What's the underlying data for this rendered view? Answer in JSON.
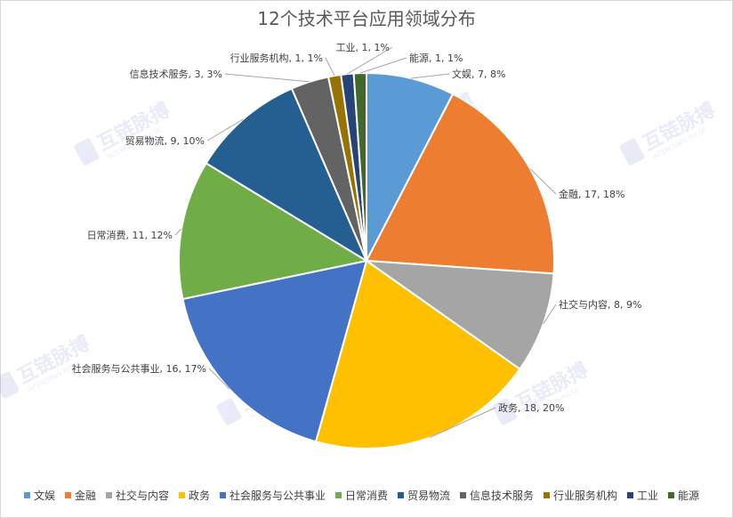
{
  "chart_data": {
    "type": "pie",
    "title": "12个技术平台应用领域分布",
    "slices": [
      {
        "name": "文娱",
        "value": 7,
        "percent": "8%",
        "color": "#5B9BD5"
      },
      {
        "name": "金融",
        "value": 17,
        "percent": "18%",
        "color": "#ED7D31"
      },
      {
        "name": "社交与内容",
        "value": 8,
        "percent": "9%",
        "color": "#A5A5A5"
      },
      {
        "name": "政务",
        "value": 18,
        "percent": "20%",
        "color": "#FFC000"
      },
      {
        "name": "社会服务与公共事业",
        "value": 16,
        "percent": "17%",
        "color": "#4472C4"
      },
      {
        "name": "日常消费",
        "value": 11,
        "percent": "12%",
        "color": "#70AD47"
      },
      {
        "name": "贸易物流",
        "value": 9,
        "percent": "10%",
        "color": "#255E91"
      },
      {
        "name": "信息技术服务",
        "value": 3,
        "percent": "3%",
        "color": "#636363"
      },
      {
        "name": "行业服务机构",
        "value": 1,
        "percent": "1%",
        "color": "#997300"
      },
      {
        "name": "工业",
        "value": 1,
        "percent": "1%",
        "color": "#264478"
      },
      {
        "name": "能源",
        "value": 1,
        "percent": "1%",
        "color": "#43682B"
      }
    ],
    "legend_position": "bottom",
    "data_labels": "name, value, percent"
  },
  "watermark": {
    "text": "互链脉搏",
    "subtext": "INTERCHAIN PULSE"
  }
}
